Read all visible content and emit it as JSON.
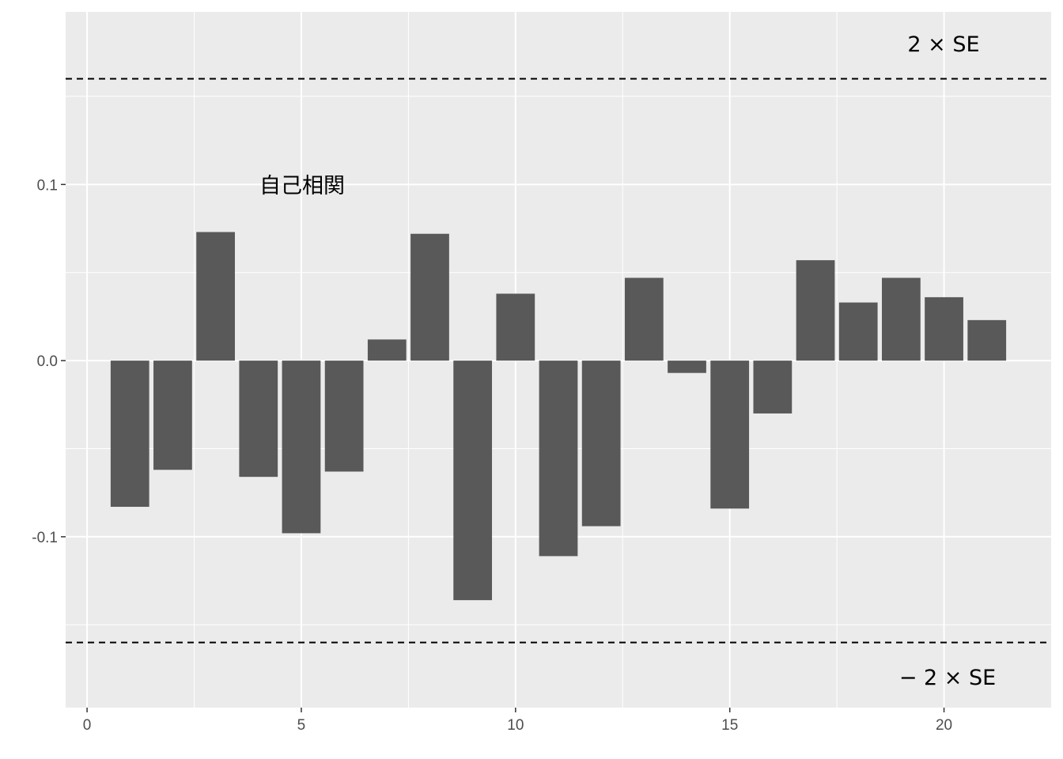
{
  "chart_data": {
    "type": "bar",
    "x": [
      1,
      2,
      3,
      4,
      5,
      6,
      7,
      8,
      9,
      10,
      11,
      12,
      13,
      14,
      15,
      16,
      17,
      18,
      19,
      20,
      21
    ],
    "values": [
      -0.083,
      -0.062,
      0.073,
      -0.066,
      -0.098,
      -0.063,
      0.012,
      0.072,
      -0.136,
      0.038,
      -0.111,
      -0.094,
      0.047,
      -0.007,
      -0.084,
      -0.03,
      0.057,
      0.033,
      0.047,
      0.036,
      0.023
    ],
    "title": "",
    "xlabel": "",
    "ylabel": "",
    "xlim": [
      -0.5,
      22.5
    ],
    "ylim": [
      -0.197,
      0.198
    ],
    "x_ticks": [
      0,
      5,
      10,
      15,
      20
    ],
    "x_tick_labels": [
      "0",
      "5",
      "10",
      "15",
      "20"
    ],
    "y_ticks": [
      -0.1,
      0.0,
      0.1
    ],
    "y_tick_labels": [
      "-0.1",
      "0.0",
      "0.1"
    ],
    "reference_lines": [
      {
        "y": 0.16,
        "style": "dashed",
        "label": "2 × SE"
      },
      {
        "y": -0.16,
        "style": "dashed",
        "label": "− 2 × SE"
      }
    ],
    "annotations": [
      {
        "text": "自己相関",
        "x": 5,
        "y": 0.1
      },
      {
        "text": "2 × SE",
        "x": 20,
        "y": 0.18
      },
      {
        "text": "− 2 × SE",
        "x": 20,
        "y": -0.18
      }
    ],
    "grid": true,
    "colors": {
      "panel_background": "#ebebeb",
      "grid_major": "#ffffff",
      "bar_fill": "#595959",
      "reference_line": "#000000",
      "tick_text": "#4d4d4d"
    }
  }
}
